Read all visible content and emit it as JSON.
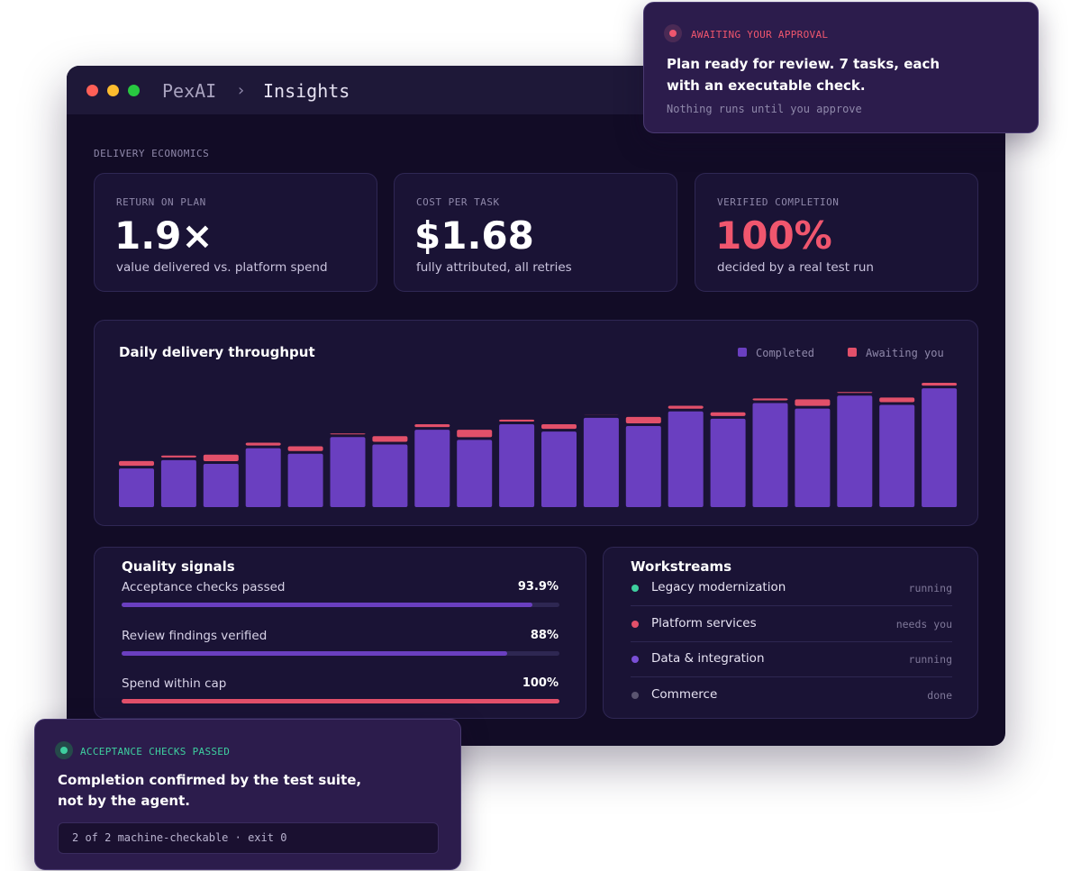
{
  "window": {
    "app": "PexAI",
    "separator": "›",
    "page": "Insights"
  },
  "section_label": "DELIVERY ECONOMICS",
  "kpis": [
    {
      "label": "RETURN ON PLAN",
      "value": "1.9×",
      "caption": "value delivered vs. platform spend"
    },
    {
      "label": "COST PER TASK",
      "value": "$1.68",
      "caption": "fully attributed, all retries"
    },
    {
      "label": "VERIFIED COMPLETION",
      "value": "100%",
      "caption": "decided by a real test run"
    }
  ],
  "chart_data": {
    "type": "bar",
    "stacked": true,
    "title": "Daily delivery throughput",
    "series": [
      {
        "name": "Completed",
        "color": "#6a3fc0",
        "values": [
          42,
          51,
          47,
          64,
          58,
          76,
          68,
          84,
          73,
          90,
          82,
          97,
          88,
          104,
          96,
          113,
          107,
          121,
          111,
          129
        ]
      },
      {
        "name": "Awaiting you",
        "color": "#e2506a",
        "values": [
          8,
          5,
          10,
          6,
          8,
          4,
          9,
          6,
          11,
          5,
          8,
          3,
          10,
          6,
          7,
          5,
          10,
          4,
          8,
          6
        ]
      }
    ]
  },
  "quality": {
    "title": "Quality signals",
    "items": [
      {
        "label": "Acceptance checks passed",
        "value": 93.9,
        "value_label": "93.9%",
        "color": "#6a3fc0"
      },
      {
        "label": "Review findings verified",
        "value": 88,
        "value_label": "88%",
        "color": "#6a3fc0"
      },
      {
        "label": "Spend within cap",
        "value": 100,
        "value_label": "100%",
        "color": "#e2506a"
      }
    ]
  },
  "workstreams": {
    "title": "Workstreams",
    "items": [
      {
        "name": "Legacy modernization",
        "status": "running",
        "color": "#3ecf9f"
      },
      {
        "name": "Platform services",
        "status": "needs you",
        "color": "#e2506a"
      },
      {
        "name": "Data & integration",
        "status": "running",
        "color": "#7a4fd6"
      },
      {
        "name": "Commerce",
        "status": "done",
        "color": "#5a5470"
      }
    ]
  },
  "approval_toast": {
    "status": "AWAITING YOUR APPROVAL",
    "lines": [
      "Plan ready for review. 7 tasks, each",
      "with an executable check."
    ],
    "note": "Nothing runs until you approve"
  },
  "checks_toast": {
    "status": "ACCEPTANCE CHECKS PASSED",
    "lines": [
      "Completion confirmed by the test suite,",
      "not by the agent."
    ],
    "code": "2 of 2 machine-checkable · exit 0"
  }
}
